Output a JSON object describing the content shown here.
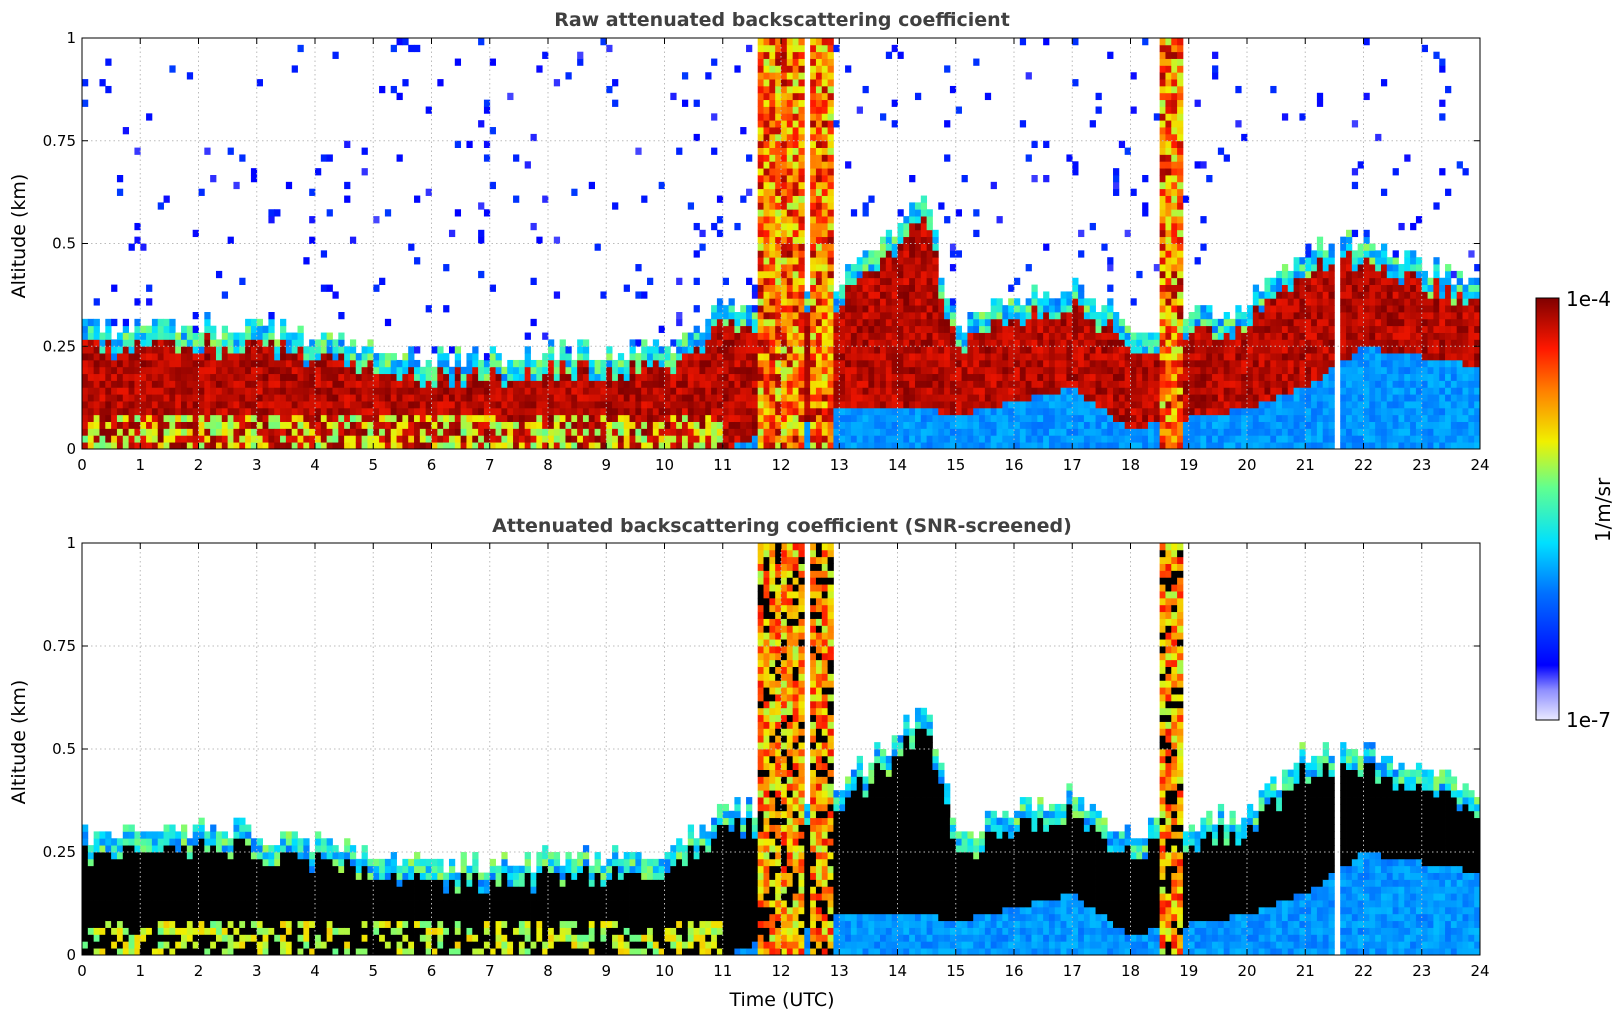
{
  "chart_data": [
    {
      "type": "heatmap",
      "title": "Raw attenuated backscattering coefficient",
      "xlabel": "",
      "ylabel": "Altitude (km)",
      "xlim": [
        0,
        24
      ],
      "ylim": [
        0,
        1
      ],
      "x_ticks": [
        "0",
        "1",
        "2",
        "3",
        "4",
        "5",
        "6",
        "7",
        "8",
        "9",
        "10",
        "11",
        "12",
        "13",
        "14",
        "15",
        "16",
        "17",
        "18",
        "19",
        "20",
        "21",
        "22",
        "23",
        "24"
      ],
      "y_ticks": [
        "0",
        "0.25",
        "0.5",
        "0.75",
        "1"
      ],
      "grid": true,
      "screened": false,
      "dominant_layer": [
        {
          "x": 0,
          "base": 0,
          "top": 0.3
        },
        {
          "x": 3,
          "base": 0,
          "top": 0.3
        },
        {
          "x": 6,
          "base": 0,
          "top": 0.22
        },
        {
          "x": 10,
          "base": 0,
          "top": 0.25
        },
        {
          "x": 11,
          "base": 0,
          "top": 0.35
        },
        {
          "x": 13,
          "base": 0.1,
          "top": 0.4
        },
        {
          "x": 14.5,
          "base": 0.1,
          "top": 0.6
        },
        {
          "x": 15,
          "base": 0.08,
          "top": 0.3
        },
        {
          "x": 17,
          "base": 0.15,
          "top": 0.4
        },
        {
          "x": 18,
          "base": 0.05,
          "top": 0.3
        },
        {
          "x": 20,
          "base": 0.1,
          "top": 0.35
        },
        {
          "x": 21,
          "base": 0.15,
          "top": 0.5
        },
        {
          "x": 22,
          "base": 0.25,
          "top": 0.5
        },
        {
          "x": 24,
          "base": 0.2,
          "top": 0.4
        }
      ],
      "precipitation_columns": [
        [
          11.6,
          12.4
        ],
        [
          12.5,
          12.95
        ],
        [
          18.5,
          18.9
        ]
      ],
      "data_gaps": [
        [
          21.5,
          21.6
        ]
      ]
    },
    {
      "type": "heatmap",
      "title": "Attenuated backscattering coefficient (SNR-screened)",
      "xlabel": "Time (UTC)",
      "ylabel": "Altitude (km)",
      "xlim": [
        0,
        24
      ],
      "ylim": [
        0,
        1
      ],
      "x_ticks": [
        "0",
        "1",
        "2",
        "3",
        "4",
        "5",
        "6",
        "7",
        "8",
        "9",
        "10",
        "11",
        "12",
        "13",
        "14",
        "15",
        "16",
        "17",
        "18",
        "19",
        "20",
        "21",
        "22",
        "23",
        "24"
      ],
      "y_ticks": [
        "0",
        "0.25",
        "0.5",
        "0.75",
        "1"
      ],
      "grid": true,
      "screened": true,
      "dominant_layer": [
        {
          "x": 0,
          "base": 0,
          "top": 0.3
        },
        {
          "x": 3,
          "base": 0,
          "top": 0.3
        },
        {
          "x": 6,
          "base": 0,
          "top": 0.22
        },
        {
          "x": 10,
          "base": 0,
          "top": 0.25
        },
        {
          "x": 11,
          "base": 0,
          "top": 0.35
        },
        {
          "x": 13,
          "base": 0.1,
          "top": 0.4
        },
        {
          "x": 14.5,
          "base": 0.1,
          "top": 0.6
        },
        {
          "x": 15,
          "base": 0.08,
          "top": 0.3
        },
        {
          "x": 17,
          "base": 0.15,
          "top": 0.4
        },
        {
          "x": 18,
          "base": 0.05,
          "top": 0.3
        },
        {
          "x": 20,
          "base": 0.1,
          "top": 0.35
        },
        {
          "x": 21,
          "base": 0.15,
          "top": 0.5
        },
        {
          "x": 22,
          "base": 0.25,
          "top": 0.5
        },
        {
          "x": 24,
          "base": 0.2,
          "top": 0.4
        }
      ],
      "precipitation_columns": [
        [
          11.6,
          12.4
        ],
        [
          12.5,
          12.95
        ],
        [
          18.5,
          18.9
        ]
      ],
      "data_gaps": [
        [
          21.5,
          21.6
        ]
      ]
    }
  ],
  "colorbar": {
    "label": "1/m/sr",
    "max_label": "1e-4",
    "min_label": "1e-7",
    "colormap": "jet",
    "scale": "log",
    "min_color": "#e8e8ff",
    "max_color": "#800000"
  }
}
